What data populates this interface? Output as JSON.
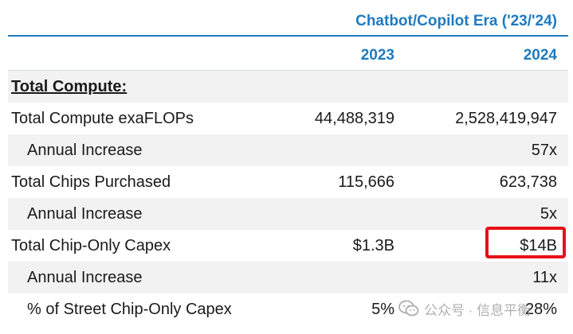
{
  "header": {
    "era_title": "Chatbot/Copilot Era ('23/'24)",
    "years": [
      "2023",
      "2024"
    ]
  },
  "section_title": "Total Compute:",
  "rows": [
    {
      "label": "Total Compute exaFLOPs",
      "v2023": "44,488,319",
      "v2024": "2,528,419,947"
    },
    {
      "label": "Annual Increase",
      "v2023": "",
      "v2024": "57x"
    },
    {
      "label": "Total Chips Purchased",
      "v2023": "115,666",
      "v2024": "623,738"
    },
    {
      "label": "Annual Increase",
      "v2023": "",
      "v2024": "5x"
    },
    {
      "label": "Total Chip-Only Capex",
      "v2023": "$1.3B",
      "v2024": "$14B"
    },
    {
      "label": "Annual Increase",
      "v2023": "",
      "v2024": "11x"
    },
    {
      "label": "% of Street Chip-Only Capex",
      "v2023": "5%",
      "v2024": "28%"
    }
  ],
  "watermark": {
    "text": "公众号 · 信息平衡"
  },
  "colors": {
    "accent": "#1f7bbf",
    "highlight": "#e8101a",
    "shade": "#f2f2f2"
  }
}
